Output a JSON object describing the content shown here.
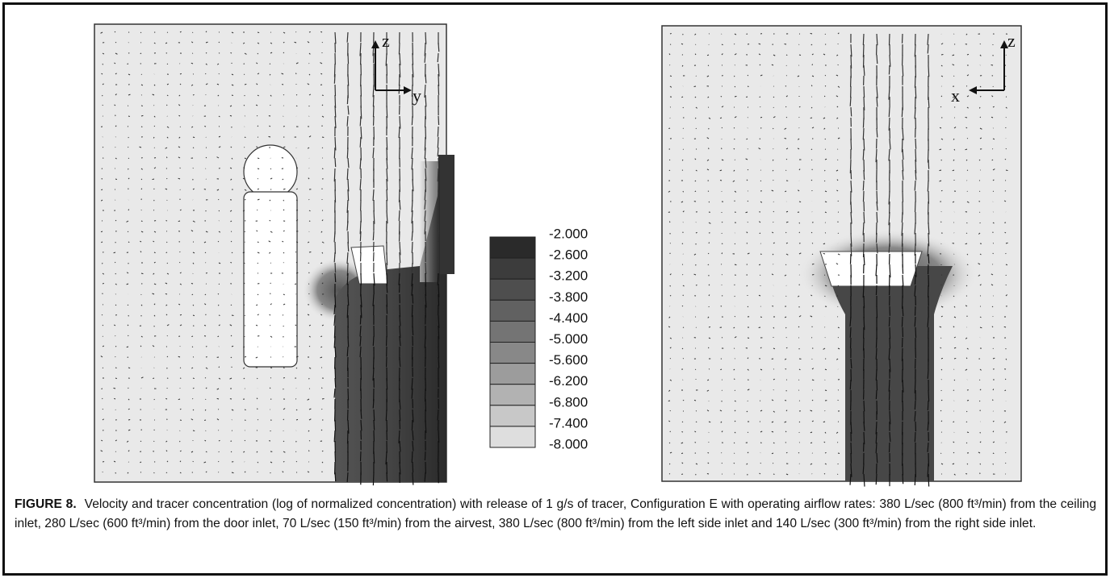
{
  "figure": {
    "left_panel": {
      "axis_up": "z",
      "axis_side": "y"
    },
    "right_panel": {
      "axis_up": "z",
      "axis_side": "x"
    },
    "colorbar": {
      "labels": [
        "-2.000",
        "-2.600",
        "-3.200",
        "-3.800",
        "-4.400",
        "-5.000",
        "-5.600",
        "-6.200",
        "-6.800",
        "-7.400",
        "-8.000"
      ],
      "colors": [
        "#2a2a2a",
        "#3c3c3c",
        "#4e4e4e",
        "#616161",
        "#747474",
        "#888888",
        "#9c9c9c",
        "#b2b2b2",
        "#c8c8c8",
        "#dedede"
      ]
    },
    "caption": {
      "label": "FIGURE 8.",
      "text": "Velocity and tracer concentration (log of normalized concentration) with release of 1 g/s of tracer, Configuration E with operating airflow rates: 380 L/sec (800 ft³/min) from the ceiling inlet, 280 L/sec (600 ft³/min) from the door inlet, 70 L/sec (150 ft³/min) from the airvest, 380 L/sec (800 ft³/min) from the left side inlet and 140 L/sec (300 ft³/min) from the right side inlet."
    }
  }
}
